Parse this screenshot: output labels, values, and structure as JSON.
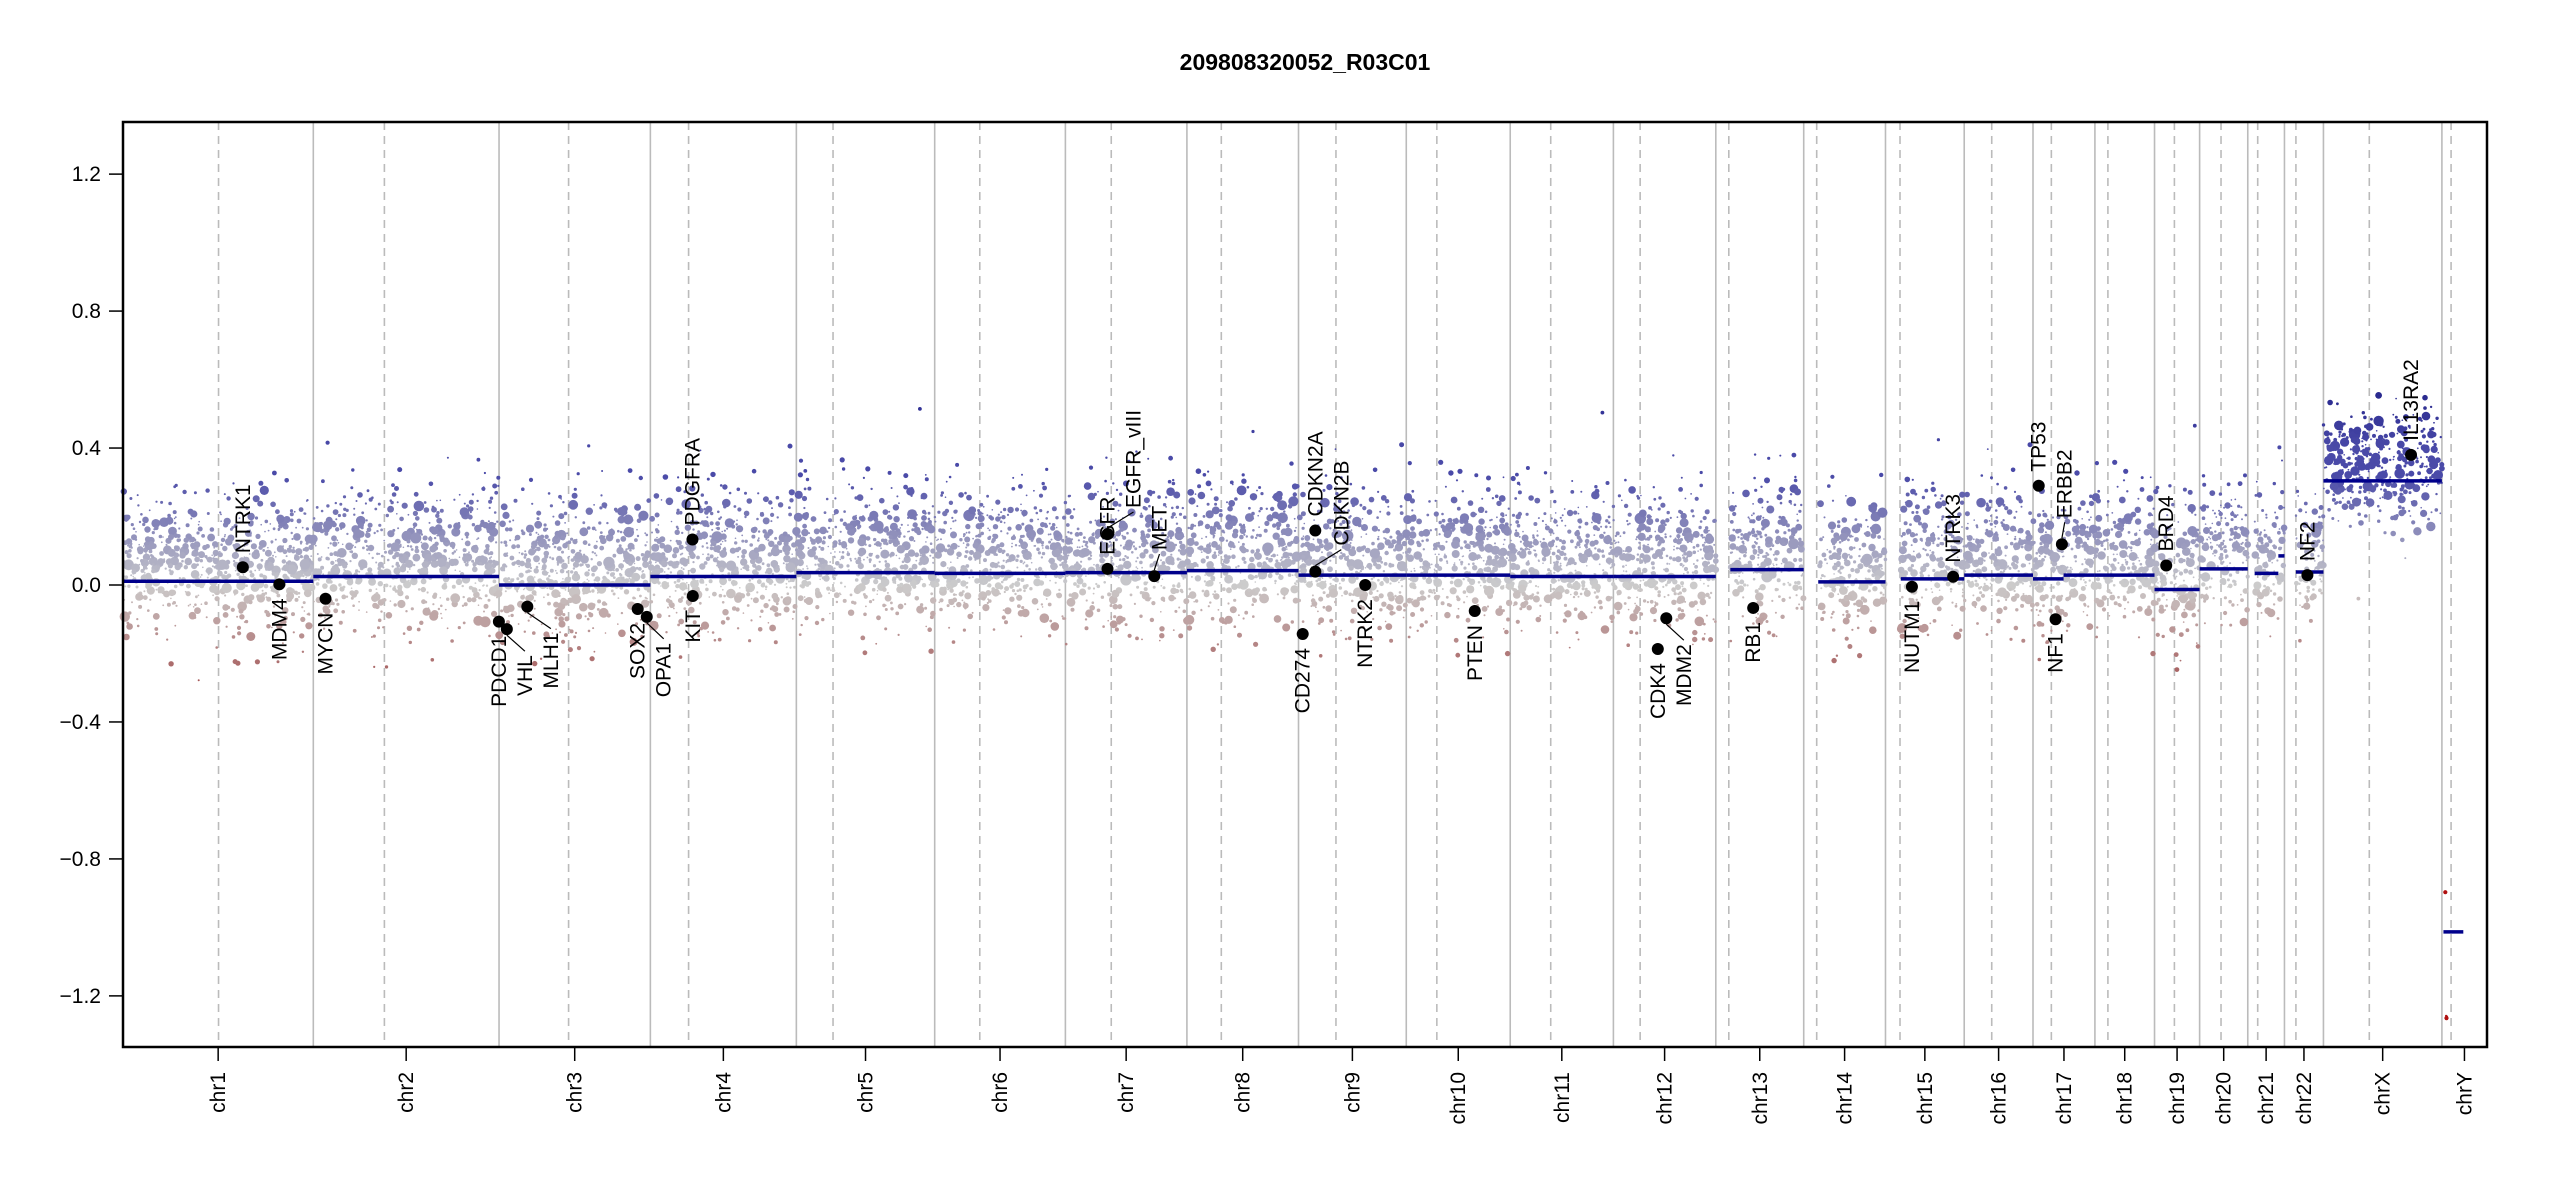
{
  "chart_data": {
    "type": "scatter",
    "title": "209808320052_R03C01",
    "xlabel": "",
    "ylabel": "",
    "ylim": [
      -1.35,
      1.35
    ],
    "y_ticks": [
      1.2,
      0.8,
      0.4,
      0.0,
      -0.4,
      -0.8,
      -1.2
    ],
    "y_tick_labels": [
      "1.2",
      "0.8",
      "0.4",
      "0.0",
      "−0.4",
      "−0.8",
      "−1.2"
    ],
    "grid": "vertical lines at chromosome boundaries (solid) and centromeres (dashed)",
    "colors": {
      "segment": "#00008b",
      "gain": "#4a4aa8",
      "loss": "#a04848",
      "neutral": "#cccccc",
      "gene_point": "#000000",
      "boundary": "#bbbbbb"
    },
    "chromosomes": [
      {
        "name": "chr1",
        "length_mb": 249,
        "centromere_mb": 125
      },
      {
        "name": "chr2",
        "length_mb": 243,
        "centromere_mb": 93
      },
      {
        "name": "chr3",
        "length_mb": 198,
        "centromere_mb": 91
      },
      {
        "name": "chr4",
        "length_mb": 191,
        "centromere_mb": 50
      },
      {
        "name": "chr5",
        "length_mb": 181,
        "centromere_mb": 48
      },
      {
        "name": "chr6",
        "length_mb": 171,
        "centromere_mb": 59
      },
      {
        "name": "chr7",
        "length_mb": 159,
        "centromere_mb": 60
      },
      {
        "name": "chr8",
        "length_mb": 146,
        "centromere_mb": 45
      },
      {
        "name": "chr9",
        "length_mb": 141,
        "centromere_mb": 49
      },
      {
        "name": "chr10",
        "length_mb": 136,
        "centromere_mb": 40
      },
      {
        "name": "chr11",
        "length_mb": 135,
        "centromere_mb": 53
      },
      {
        "name": "chr12",
        "length_mb": 134,
        "centromere_mb": 35
      },
      {
        "name": "chr13",
        "length_mb": 115,
        "centromere_mb": 17
      },
      {
        "name": "chr14",
        "length_mb": 107,
        "centromere_mb": 17
      },
      {
        "name": "chr15",
        "length_mb": 103,
        "centromere_mb": 19
      },
      {
        "name": "chr16",
        "length_mb": 90,
        "centromere_mb": 36
      },
      {
        "name": "chr17",
        "length_mb": 81,
        "centromere_mb": 24
      },
      {
        "name": "chr18",
        "length_mb": 78,
        "centromere_mb": 17
      },
      {
        "name": "chr19",
        "length_mb": 59,
        "centromere_mb": 26
      },
      {
        "name": "chr20",
        "length_mb": 63,
        "centromere_mb": 28
      },
      {
        "name": "chr21",
        "length_mb": 48,
        "centromere_mb": 13
      },
      {
        "name": "chr22",
        "length_mb": 51,
        "centromere_mb": 15
      },
      {
        "name": "chrX",
        "length_mb": 155,
        "centromere_mb": 60
      },
      {
        "name": "chrY",
        "length_mb": 59,
        "centromere_mb": 12
      }
    ],
    "segments": [
      {
        "chr": "chr1",
        "start": 0,
        "end": 249,
        "value": 0.011
      },
      {
        "chr": "chr2",
        "start": 0,
        "end": 243,
        "value": 0.025
      },
      {
        "chr": "chr3",
        "start": 0,
        "end": 198,
        "value": 0.0
      },
      {
        "chr": "chr4",
        "start": 0,
        "end": 191,
        "value": 0.025
      },
      {
        "chr": "chr5",
        "start": 0,
        "end": 181,
        "value": 0.036
      },
      {
        "chr": "chr6",
        "start": 0,
        "end": 171,
        "value": 0.034
      },
      {
        "chr": "chr7",
        "start": 0,
        "end": 159,
        "value": 0.036
      },
      {
        "chr": "chr8",
        "start": 0,
        "end": 146,
        "value": 0.042
      },
      {
        "chr": "chr9",
        "start": 0,
        "end": 141,
        "value": 0.029
      },
      {
        "chr": "chr10",
        "start": 0,
        "end": 136,
        "value": 0.029
      },
      {
        "chr": "chr11",
        "start": 0,
        "end": 135,
        "value": 0.025
      },
      {
        "chr": "chr12",
        "start": 0,
        "end": 134,
        "value": 0.025
      },
      {
        "chr": "chr13",
        "start": 19,
        "end": 115,
        "value": 0.045
      },
      {
        "chr": "chr14",
        "start": 19,
        "end": 107,
        "value": 0.009
      },
      {
        "chr": "chr15",
        "start": 20,
        "end": 103,
        "value": 0.018
      },
      {
        "chr": "chr16",
        "start": 0,
        "end": 90,
        "value": 0.029
      },
      {
        "chr": "chr17",
        "start": 0,
        "end": 40,
        "value": 0.018
      },
      {
        "chr": "chr17",
        "start": 40,
        "end": 81,
        "value": 0.029
      },
      {
        "chr": "chr18",
        "start": 0,
        "end": 78,
        "value": 0.029
      },
      {
        "chr": "chr19",
        "start": 0,
        "end": 59,
        "value": -0.013
      },
      {
        "chr": "chr20",
        "start": 0,
        "end": 63,
        "value": 0.047
      },
      {
        "chr": "chr21",
        "start": 9,
        "end": 40,
        "value": 0.034
      },
      {
        "chr": "chr21",
        "start": 40,
        "end": 48,
        "value": 0.085
      },
      {
        "chr": "chr22",
        "start": 15,
        "end": 51,
        "value": 0.038
      },
      {
        "chr": "chrX",
        "start": 0,
        "end": 155,
        "value": 0.304
      },
      {
        "chr": "chrY",
        "start": 2,
        "end": 28,
        "value": -1.013
      }
    ],
    "genes": [
      {
        "name": "NTRK1",
        "chr": "chr1",
        "pos_mb": 156.8,
        "value": 0.052,
        "label_side": "above"
      },
      {
        "name": "MDM4",
        "chr": "chr1",
        "pos_mb": 204.5,
        "value": 0.002,
        "label_side": "below"
      },
      {
        "name": "MYCN",
        "chr": "chr2",
        "pos_mb": 16.0,
        "value": -0.04,
        "label_side": "below"
      },
      {
        "name": "PDCD1",
        "chr": "chr2",
        "pos_mb": 242.8,
        "value": -0.107,
        "label_side": "below"
      },
      {
        "name": "VHL",
        "chr": "chr3",
        "pos_mb": 10.2,
        "value": -0.129,
        "label_side": "below"
      },
      {
        "name": "MLH1",
        "chr": "chr3",
        "pos_mb": 37.0,
        "value": -0.063,
        "label_side": "below"
      },
      {
        "name": "SOX2",
        "chr": "chr3",
        "pos_mb": 181.4,
        "value": -0.07,
        "label_side": "below"
      },
      {
        "name": "OPA1",
        "chr": "chr3",
        "pos_mb": 193.3,
        "value": -0.093,
        "label_side": "below"
      },
      {
        "name": "PDGFRA",
        "chr": "chr4",
        "pos_mb": 55.1,
        "value": 0.133,
        "label_side": "above"
      },
      {
        "name": "KIT",
        "chr": "chr4",
        "pos_mb": 55.5,
        "value": -0.032,
        "label_side": "below"
      },
      {
        "name": "EGFR",
        "chr": "chr7",
        "pos_mb": 55.1,
        "value": 0.047,
        "label_side": "above"
      },
      {
        "name": "EGFR_vIII",
        "chr": "chr7",
        "pos_mb": 55.2,
        "value": 0.149,
        "label_side": "above"
      },
      {
        "name": "MET",
        "chr": "chr7",
        "pos_mb": 116.3,
        "value": 0.026,
        "label_side": "above"
      },
      {
        "name": "CD274",
        "chr": "chr9",
        "pos_mb": 5.5,
        "value": -0.143,
        "label_side": "below"
      },
      {
        "name": "CDKN2A",
        "chr": "chr9",
        "pos_mb": 21.97,
        "value": 0.159,
        "label_side": "above"
      },
      {
        "name": "CDKN2B",
        "chr": "chr9",
        "pos_mb": 22.0,
        "value": 0.039,
        "label_side": "above"
      },
      {
        "name": "NTRK2",
        "chr": "chr9",
        "pos_mb": 87.3,
        "value": 0.0,
        "label_side": "below"
      },
      {
        "name": "PTEN",
        "chr": "chr10",
        "pos_mb": 89.6,
        "value": -0.076,
        "label_side": "below"
      },
      {
        "name": "CDK4",
        "chr": "chr12",
        "pos_mb": 58.1,
        "value": -0.187,
        "label_side": "below"
      },
      {
        "name": "MDM2",
        "chr": "chr12",
        "pos_mb": 69.2,
        "value": -0.097,
        "label_side": "below"
      },
      {
        "name": "RB1",
        "chr": "chr13",
        "pos_mb": 48.9,
        "value": -0.067,
        "label_side": "below"
      },
      {
        "name": "NUTM1",
        "chr": "chr15",
        "pos_mb": 34.6,
        "value": -0.005,
        "label_side": "below"
      },
      {
        "name": "NTRK3",
        "chr": "chr15",
        "pos_mb": 88.5,
        "value": 0.024,
        "label_side": "above"
      },
      {
        "name": "TP53",
        "chr": "chr17",
        "pos_mb": 7.5,
        "value": 0.29,
        "label_side": "above"
      },
      {
        "name": "NF1",
        "chr": "chr17",
        "pos_mb": 29.5,
        "value": -0.1,
        "label_side": "below"
      },
      {
        "name": "ERBB2",
        "chr": "chr17",
        "pos_mb": 37.8,
        "value": 0.119,
        "label_side": "above"
      },
      {
        "name": "BRD4",
        "chr": "chr19",
        "pos_mb": 15.3,
        "value": 0.057,
        "label_side": "above"
      },
      {
        "name": "NF2",
        "chr": "chr22",
        "pos_mb": 30.0,
        "value": 0.029,
        "label_side": "above"
      },
      {
        "name": "IL13RA2",
        "chr": "chrX",
        "pos_mb": 114.6,
        "value": 0.38,
        "label_side": "above"
      }
    ]
  }
}
